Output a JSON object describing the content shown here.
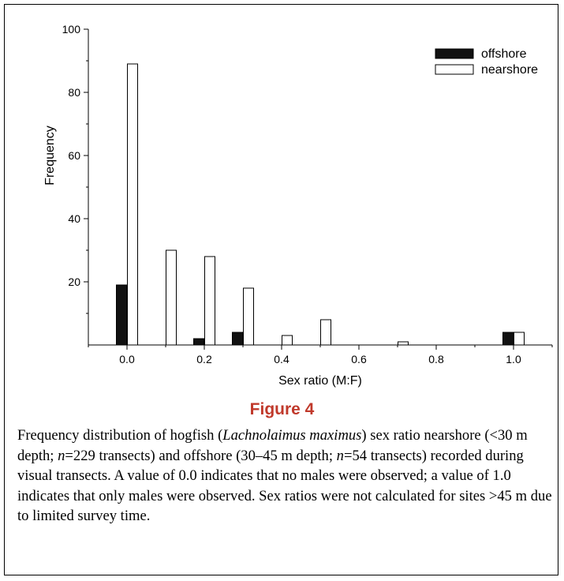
{
  "figure_label": "Figure 4",
  "caption": {
    "part1": "Frequency distribution of hogfish (",
    "species": "Lachnolaimus maximus",
    "part2": ") sex ratio nearshore (<30 m depth; ",
    "n1_var": "n",
    "n1_value": "=229 transects) and offshore (30–45 m depth; ",
    "n2_var": "n",
    "n2_value": "=54 transects) recorded during visual transects. A value of 0.0 indicates that no males were observed; a value of 1.0 indicates that only males were observed. Sex ratios were not calculated for sites >45 m due to limited survey time."
  },
  "chart_data": {
    "type": "bar",
    "xlabel": "Sex ratio (M:F)",
    "ylabel": "Frequency",
    "xlim": [
      -0.1,
      1.1
    ],
    "ylim": [
      0,
      100
    ],
    "x_ticks": [
      "0.0",
      "0.2",
      "0.4",
      "0.6",
      "0.8",
      "1.0"
    ],
    "x_tick_values": [
      0.0,
      0.2,
      0.4,
      0.6,
      0.8,
      1.0
    ],
    "y_ticks": [
      "20",
      "40",
      "60",
      "80",
      "100"
    ],
    "y_tick_values": [
      20,
      40,
      60,
      80,
      100
    ],
    "legend_position": "top-right",
    "series": [
      {
        "name": "offshore",
        "fill": "#111111",
        "x": [
          0.0,
          0.2,
          0.3,
          1.0
        ],
        "values": [
          19,
          2,
          4,
          4
        ]
      },
      {
        "name": "nearshore",
        "fill": "#ffffff",
        "x": [
          0.0,
          0.1,
          0.2,
          0.3,
          0.4,
          0.5,
          0.7,
          1.0
        ],
        "values": [
          89,
          30,
          28,
          18,
          3,
          8,
          1,
          4
        ]
      }
    ]
  }
}
